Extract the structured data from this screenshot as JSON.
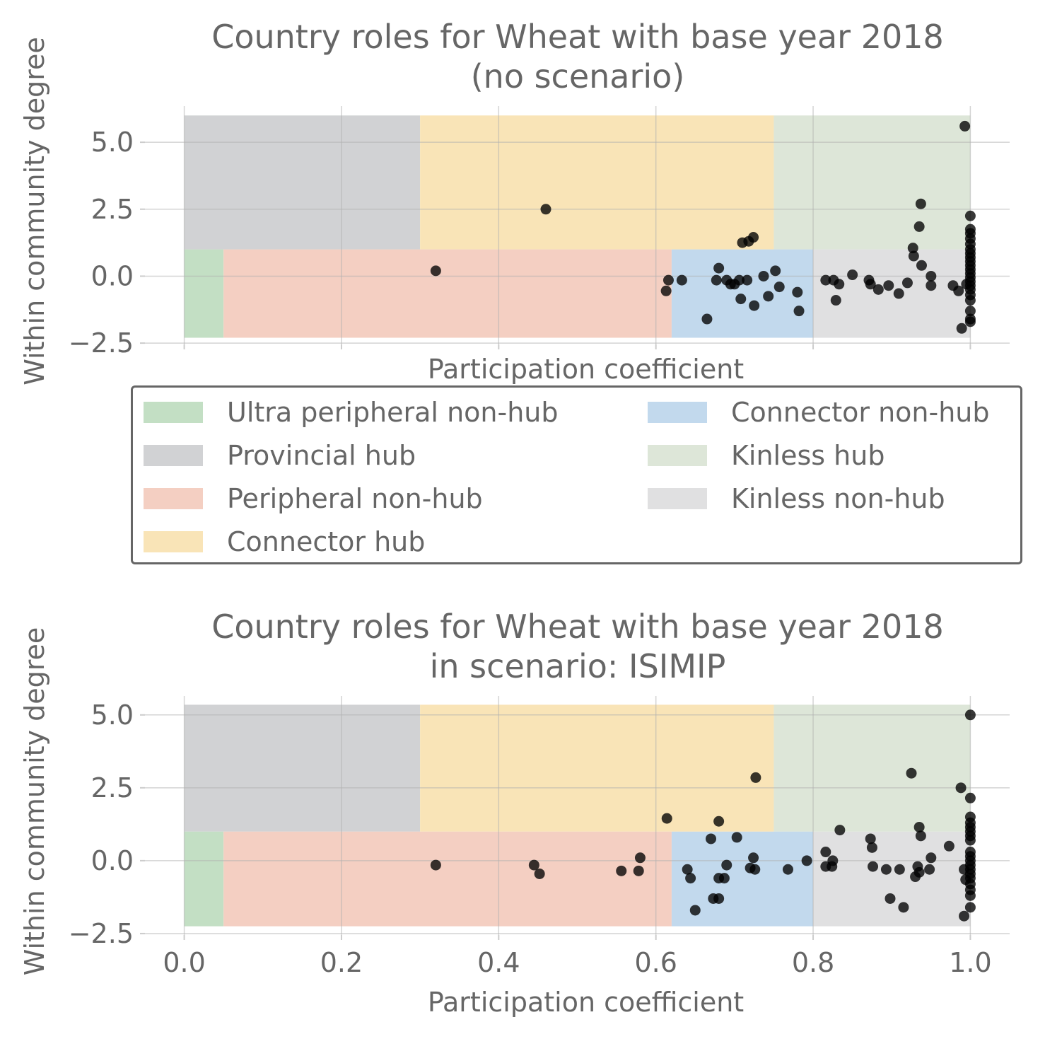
{
  "chart_data": [
    {
      "type": "scatter",
      "title": [
        "Country roles for Wheat with base year 2018",
        "(no scenario)"
      ],
      "xlabel": "Participation coefficient",
      "ylabel": "Within community degree",
      "xlim": [
        -0.05,
        1.05
      ],
      "ylim": [
        -2.55,
        6.35
      ],
      "xticks": [
        "0.0",
        "0.2",
        "0.4",
        "0.6",
        "0.8",
        "1.0"
      ],
      "yticks": [
        -2.5,
        0.0,
        2.5,
        5.0
      ],
      "ytick_labels": [
        "−2.5",
        "0.0",
        "2.5",
        "5.0"
      ],
      "x_tick_labels_visible": false,
      "grid": true,
      "regions": [
        {
          "role": "Ultra peripheral non-hub",
          "x": [
            0.0,
            0.05
          ],
          "y": [
            -2.3,
            1.0
          ],
          "color": "#c3dfc4"
        },
        {
          "role": "Peripheral non-hub",
          "x": [
            0.05,
            0.62
          ],
          "y": [
            -2.3,
            1.0
          ],
          "color": "#f4cfc2"
        },
        {
          "role": "Connector non-hub",
          "x": [
            0.62,
            0.8
          ],
          "y": [
            -2.3,
            1.0
          ],
          "color": "#c2d9ed"
        },
        {
          "role": "Kinless non-hub",
          "x": [
            0.8,
            1.0
          ],
          "y": [
            -2.3,
            1.0
          ],
          "color": "#e0e0e1"
        },
        {
          "role": "Provincial hub",
          "x": [
            0.0,
            0.3
          ],
          "y": [
            1.0,
            6.0
          ],
          "color": "#d1d2d4"
        },
        {
          "role": "Connector hub",
          "x": [
            0.3,
            0.75
          ],
          "y": [
            1.0,
            6.0
          ],
          "color": "#f9e4b7"
        },
        {
          "role": "Kinless hub",
          "x": [
            0.75,
            1.0
          ],
          "y": [
            1.0,
            6.0
          ],
          "color": "#dde6d8"
        }
      ],
      "points": [
        [
          0.32,
          0.2
        ],
        [
          0.46,
          2.5
        ],
        [
          0.613,
          -0.55
        ],
        [
          0.616,
          -0.15
        ],
        [
          0.633,
          -0.15
        ],
        [
          0.665,
          -1.6
        ],
        [
          0.68,
          0.3
        ],
        [
          0.677,
          -0.15
        ],
        [
          0.69,
          -0.15
        ],
        [
          0.695,
          -0.3
        ],
        [
          0.7,
          -0.3
        ],
        [
          0.706,
          -0.15
        ],
        [
          0.708,
          -0.85
        ],
        [
          0.716,
          -0.15
        ],
        [
          0.725,
          -1.1
        ],
        [
          0.737,
          0.0
        ],
        [
          0.743,
          -0.75
        ],
        [
          0.752,
          0.2
        ],
        [
          0.757,
          -0.4
        ],
        [
          0.78,
          -0.6
        ],
        [
          0.782,
          -1.3
        ],
        [
          0.71,
          1.25
        ],
        [
          0.718,
          1.3
        ],
        [
          0.724,
          1.45
        ],
        [
          0.816,
          -0.15
        ],
        [
          0.826,
          -0.15
        ],
        [
          0.829,
          -0.9
        ],
        [
          0.833,
          -0.3
        ],
        [
          0.85,
          0.05
        ],
        [
          0.871,
          -0.15
        ],
        [
          0.873,
          -0.3
        ],
        [
          0.883,
          -0.5
        ],
        [
          0.896,
          -0.35
        ],
        [
          0.909,
          -0.65
        ],
        [
          0.92,
          -0.25
        ],
        [
          0.927,
          1.05
        ],
        [
          0.928,
          0.75
        ],
        [
          0.935,
          1.85
        ],
        [
          0.937,
          2.7
        ],
        [
          0.938,
          0.4
        ],
        [
          0.95,
          0.0
        ],
        [
          0.95,
          -0.35
        ],
        [
          0.978,
          -0.35
        ],
        [
          0.985,
          -0.55
        ],
        [
          0.989,
          -1.95
        ],
        [
          0.993,
          5.6
        ],
        [
          0.995,
          -0.3
        ],
        [
          1.0,
          2.25
        ],
        [
          1.0,
          1.75
        ],
        [
          1.0,
          1.6
        ],
        [
          1.0,
          1.4
        ],
        [
          1.0,
          1.2
        ],
        [
          1.0,
          1.0
        ],
        [
          1.0,
          0.85
        ],
        [
          1.0,
          0.7
        ],
        [
          1.0,
          0.55
        ],
        [
          1.0,
          0.4
        ],
        [
          1.0,
          0.25
        ],
        [
          1.0,
          0.1
        ],
        [
          1.0,
          -0.05
        ],
        [
          1.0,
          -0.2
        ],
        [
          1.0,
          -0.35
        ],
        [
          1.0,
          -0.5
        ],
        [
          1.0,
          -0.7
        ],
        [
          1.0,
          -0.9
        ],
        [
          1.0,
          -1.3
        ],
        [
          1.0,
          -1.6
        ],
        [
          1.0,
          -1.7
        ]
      ]
    },
    {
      "type": "scatter",
      "title": [
        "Country roles for Wheat with base year 2018",
        "in scenario: ISIMIP"
      ],
      "xlabel": "Participation coefficient",
      "ylabel": "Within community degree",
      "xlim": [
        -0.05,
        1.05
      ],
      "ylim": [
        -2.55,
        5.65
      ],
      "xticks": [
        "0.0",
        "0.2",
        "0.4",
        "0.6",
        "0.8",
        "1.0"
      ],
      "yticks": [
        -2.5,
        0.0,
        2.5,
        5.0
      ],
      "ytick_labels": [
        "−2.5",
        "0.0",
        "2.5",
        "5.0"
      ],
      "x_tick_labels_visible": true,
      "grid": true,
      "regions": [
        {
          "role": "Ultra peripheral non-hub",
          "x": [
            0.0,
            0.05
          ],
          "y": [
            -2.25,
            1.0
          ],
          "color": "#c3dfc4"
        },
        {
          "role": "Peripheral non-hub",
          "x": [
            0.05,
            0.62
          ],
          "y": [
            -2.25,
            1.0
          ],
          "color": "#f4cfc2"
        },
        {
          "role": "Connector non-hub",
          "x": [
            0.62,
            0.8
          ],
          "y": [
            -2.25,
            1.0
          ],
          "color": "#c2d9ed"
        },
        {
          "role": "Kinless non-hub",
          "x": [
            0.8,
            1.0
          ],
          "y": [
            -2.25,
            1.0
          ],
          "color": "#e0e0e1"
        },
        {
          "role": "Provincial hub",
          "x": [
            0.0,
            0.3
          ],
          "y": [
            1.0,
            5.35
          ],
          "color": "#d1d2d4"
        },
        {
          "role": "Connector hub",
          "x": [
            0.3,
            0.75
          ],
          "y": [
            1.0,
            5.35
          ],
          "color": "#f9e4b7"
        },
        {
          "role": "Kinless hub",
          "x": [
            0.75,
            1.0
          ],
          "y": [
            1.0,
            5.35
          ],
          "color": "#dde6d8"
        }
      ],
      "points": [
        [
          0.32,
          -0.15
        ],
        [
          0.445,
          -0.15
        ],
        [
          0.452,
          -0.45
        ],
        [
          0.556,
          -0.35
        ],
        [
          0.578,
          -0.35
        ],
        [
          0.58,
          0.1
        ],
        [
          0.614,
          1.45
        ],
        [
          0.68,
          1.35
        ],
        [
          0.727,
          2.85
        ],
        [
          0.64,
          -0.3
        ],
        [
          0.644,
          -0.6
        ],
        [
          0.65,
          -1.7
        ],
        [
          0.67,
          0.75
        ],
        [
          0.673,
          -1.3
        ],
        [
          0.68,
          -1.3
        ],
        [
          0.68,
          -0.6
        ],
        [
          0.687,
          -0.6
        ],
        [
          0.69,
          -0.15
        ],
        [
          0.703,
          0.8
        ],
        [
          0.72,
          -0.25
        ],
        [
          0.724,
          0.1
        ],
        [
          0.726,
          -0.3
        ],
        [
          0.768,
          -0.3
        ],
        [
          0.792,
          0.0
        ],
        [
          0.816,
          0.3
        ],
        [
          0.816,
          -0.2
        ],
        [
          0.824,
          -0.2
        ],
        [
          0.825,
          0.0
        ],
        [
          0.834,
          1.05
        ],
        [
          0.873,
          0.75
        ],
        [
          0.875,
          0.45
        ],
        [
          0.876,
          -0.2
        ],
        [
          0.893,
          -0.3
        ],
        [
          0.898,
          -1.3
        ],
        [
          0.91,
          -0.3
        ],
        [
          0.915,
          -1.6
        ],
        [
          0.925,
          3.0
        ],
        [
          0.93,
          -0.55
        ],
        [
          0.933,
          -0.2
        ],
        [
          0.935,
          -0.4
        ],
        [
          0.935,
          1.15
        ],
        [
          0.937,
          0.85
        ],
        [
          0.948,
          -0.3
        ],
        [
          0.95,
          0.1
        ],
        [
          0.973,
          0.5
        ],
        [
          0.988,
          2.5
        ],
        [
          0.992,
          -0.3
        ],
        [
          0.992,
          -1.9
        ],
        [
          0.994,
          -0.65
        ],
        [
          1.0,
          5.0
        ],
        [
          1.0,
          2.15
        ],
        [
          1.0,
          1.5
        ],
        [
          1.0,
          1.3
        ],
        [
          1.0,
          1.15
        ],
        [
          1.0,
          1.0
        ],
        [
          1.0,
          0.85
        ],
        [
          1.0,
          0.7
        ],
        [
          1.0,
          0.3
        ],
        [
          1.0,
          0.15
        ],
        [
          1.0,
          0.0
        ],
        [
          1.0,
          -0.15
        ],
        [
          1.0,
          -0.3
        ],
        [
          1.0,
          -0.45
        ],
        [
          1.0,
          -0.6
        ],
        [
          1.0,
          -0.8
        ],
        [
          1.0,
          -1.0
        ],
        [
          1.0,
          -1.2
        ],
        [
          1.0,
          -1.6
        ]
      ]
    }
  ],
  "legend": {
    "items": [
      {
        "label": "Ultra peripheral non-hub",
        "color": "#c3dfc4"
      },
      {
        "label": "Provincial hub",
        "color": "#d1d2d4"
      },
      {
        "label": "Peripheral non-hub",
        "color": "#f4cfc2"
      },
      {
        "label": "Connector hub",
        "color": "#f9e4b7"
      },
      {
        "label": "Connector non-hub",
        "color": "#c2d9ed"
      },
      {
        "label": "Kinless hub",
        "color": "#dde6d8"
      },
      {
        "label": "Kinless non-hub",
        "color": "#e0e0e1"
      }
    ]
  },
  "colors": {
    "text": "#666666",
    "grid": "#e0e0e0",
    "grid_over_region": "#c4c4c4",
    "marker": "#000000"
  }
}
